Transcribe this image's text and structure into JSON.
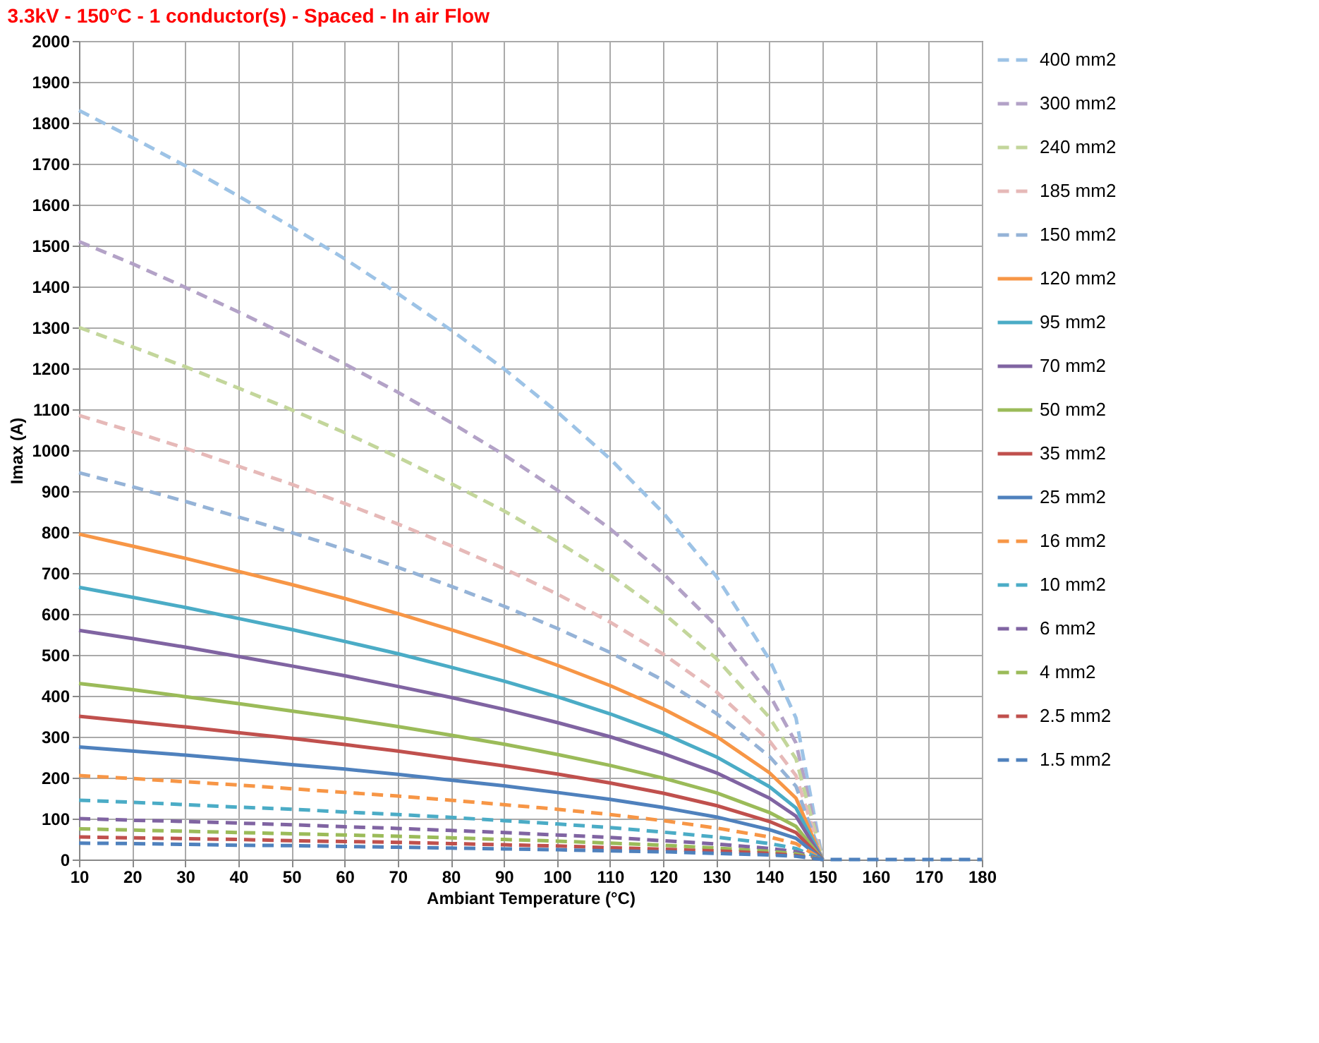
{
  "chart_data": {
    "type": "line",
    "title": "3.3kV - 150°C - 1 conductor(s) - Spaced - In air Flow",
    "xlabel": "Ambiant Temperature (°C)",
    "ylabel": "Imax (A)",
    "x": [
      10,
      20,
      30,
      40,
      50,
      60,
      70,
      80,
      90,
      100,
      110,
      120,
      130,
      140,
      145,
      150,
      160,
      170,
      180
    ],
    "xlim": [
      10,
      180
    ],
    "xticks": [
      10,
      20,
      30,
      40,
      50,
      60,
      70,
      80,
      90,
      100,
      110,
      120,
      130,
      140,
      150,
      160,
      170,
      180
    ],
    "ylim": [
      0,
      2000
    ],
    "yticks": [
      0,
      100,
      200,
      300,
      400,
      500,
      600,
      700,
      800,
      900,
      1000,
      1100,
      1200,
      1300,
      1400,
      1500,
      1600,
      1700,
      1800,
      1900,
      2000
    ],
    "grid": true,
    "legend": "right",
    "marker": "none",
    "series": [
      {
        "name": "400 mm2",
        "color": "#9dc3e6",
        "line_style": "dashed",
        "values": [
          1830,
          1764,
          1695,
          1621,
          1546,
          1468,
          1383,
          1294,
          1199,
          1094,
          979,
          847,
          692,
          489,
          346,
          0,
          null,
          null,
          null
        ]
      },
      {
        "name": "300 mm2",
        "color": "#b3a2c7",
        "line_style": "dashed",
        "values": [
          1510,
          1456,
          1398,
          1338,
          1276,
          1211,
          1142,
          1068,
          989,
          903,
          808,
          699,
          571,
          403,
          285,
          0,
          null,
          null,
          null
        ]
      },
      {
        "name": "240 mm2",
        "color": "#c3d69b",
        "line_style": "dashed",
        "values": [
          1300,
          1253,
          1204,
          1152,
          1099,
          1043,
          983,
          919,
          852,
          777,
          696,
          602,
          491,
          347,
          246,
          0,
          null,
          null,
          null
        ]
      },
      {
        "name": "185 mm2",
        "color": "#e6b9b8",
        "line_style": "dashed",
        "values": [
          1085,
          1046,
          1005,
          961,
          917,
          870,
          820,
          767,
          711,
          649,
          580,
          502,
          410,
          290,
          205,
          0,
          null,
          null,
          null
        ]
      },
      {
        "name": "150 mm2",
        "color": "#95b3d7",
        "line_style": "dashed",
        "values": [
          945,
          911,
          875,
          837,
          799,
          758,
          714,
          668,
          619,
          565,
          506,
          438,
          357,
          252,
          179,
          0,
          null,
          null,
          null
        ]
      },
      {
        "name": "120 mm2",
        "color": "#f79646",
        "line_style": "solid",
        "values": [
          795,
          766,
          736,
          704,
          672,
          638,
          601,
          562,
          521,
          475,
          425,
          368,
          301,
          212,
          150,
          0,
          null,
          null,
          null
        ]
      },
      {
        "name": "95 mm2",
        "color": "#4bacc6",
        "line_style": "solid",
        "values": [
          665,
          641,
          616,
          589,
          562,
          533,
          503,
          470,
          436,
          398,
          356,
          308,
          251,
          178,
          126,
          0,
          null,
          null,
          null
        ]
      },
      {
        "name": "70 mm2",
        "color": "#8064a2",
        "line_style": "solid",
        "values": [
          560,
          540,
          519,
          496,
          473,
          449,
          423,
          396,
          367,
          335,
          300,
          259,
          212,
          150,
          106,
          0,
          null,
          null,
          null
        ]
      },
      {
        "name": "50 mm2",
        "color": "#9bbb59",
        "line_style": "solid",
        "values": [
          430,
          415,
          398,
          381,
          363,
          345,
          325,
          304,
          282,
          257,
          230,
          199,
          163,
          115,
          81,
          0,
          null,
          null,
          null
        ]
      },
      {
        "name": "35 mm2",
        "color": "#c0504d",
        "line_style": "solid",
        "values": [
          350,
          337,
          324,
          310,
          296,
          281,
          265,
          247,
          229,
          209,
          187,
          162,
          132,
          93,
          66,
          0,
          null,
          null,
          null
        ]
      },
      {
        "name": "25 mm2",
        "color": "#4f81bd",
        "line_style": "solid",
        "values": [
          275,
          265,
          255,
          244,
          232,
          221,
          208,
          194,
          180,
          164,
          147,
          127,
          104,
          73,
          52,
          0,
          null,
          null,
          null
        ]
      },
      {
        "name": "16 mm2",
        "color": "#f79646",
        "line_style": "dashed",
        "values": [
          205,
          198,
          190,
          182,
          173,
          164,
          155,
          145,
          134,
          123,
          110,
          95,
          77,
          55,
          39,
          0,
          null,
          null,
          null
        ]
      },
      {
        "name": "10 mm2",
        "color": "#4bacc6",
        "line_style": "dashed",
        "values": [
          145,
          140,
          134,
          128,
          123,
          116,
          110,
          103,
          95,
          87,
          78,
          67,
          55,
          39,
          27,
          0,
          null,
          null,
          null
        ]
      },
      {
        "name": "6 mm2",
        "color": "#8064a2",
        "line_style": "dashed",
        "values": [
          100,
          96,
          93,
          89,
          85,
          80,
          76,
          71,
          66,
          60,
          54,
          46,
          38,
          27,
          19,
          0,
          null,
          null,
          null
        ]
      },
      {
        "name": "4 mm2",
        "color": "#9bbb59",
        "line_style": "dashed",
        "values": [
          75,
          72,
          69,
          66,
          63,
          60,
          57,
          53,
          49,
          45,
          40,
          35,
          28,
          20,
          14,
          0,
          null,
          null,
          null
        ]
      },
      {
        "name": "2.5 mm2",
        "color": "#c0504d",
        "line_style": "dashed",
        "values": [
          55,
          53,
          51,
          49,
          46,
          44,
          42,
          39,
          36,
          33,
          29,
          25,
          21,
          15,
          10,
          0,
          null,
          null,
          null
        ]
      },
      {
        "name": "1.5 mm2",
        "color": "#4f81bd",
        "line_style": "dashed",
        "values": [
          40,
          39,
          37,
          35,
          34,
          32,
          30,
          28,
          26,
          24,
          21,
          19,
          15,
          11,
          8,
          0,
          0,
          0,
          0
        ]
      }
    ]
  }
}
